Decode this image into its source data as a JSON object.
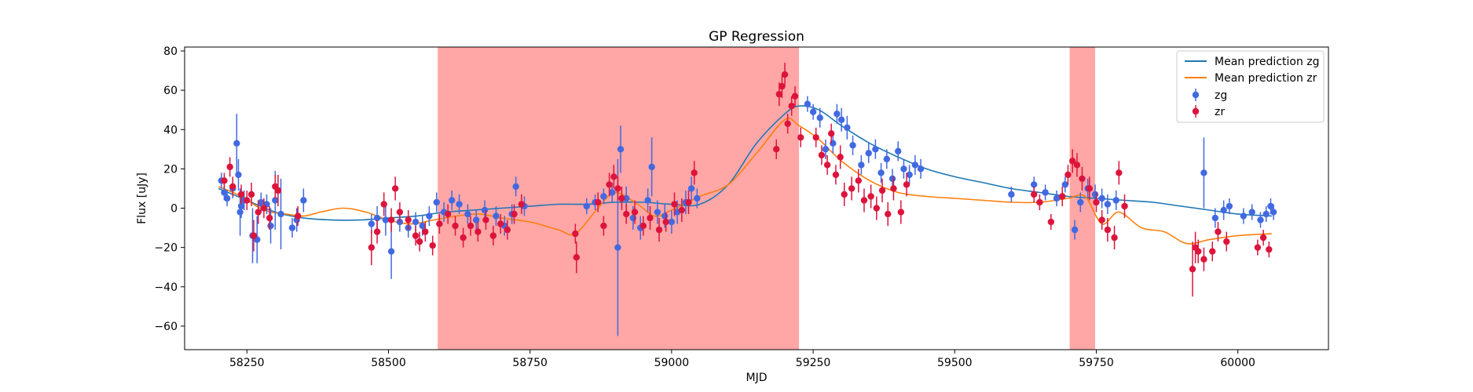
{
  "chart_data": {
    "type": "scatter",
    "title": "GP Regression",
    "xlabel": "MJD",
    "ylabel": "Flux [uJy]",
    "xlim": [
      58140,
      60160
    ],
    "ylim": [
      -72,
      82
    ],
    "x_ticks": [
      58250,
      58500,
      58750,
      59000,
      59250,
      59500,
      59750,
      60000
    ],
    "y_ticks": [
      -60,
      -40,
      -20,
      0,
      20,
      40,
      60,
      80
    ],
    "grid": false,
    "legend_position": "top-right",
    "shaded_regions": [
      {
        "x0": 58587,
        "x1": 59225,
        "color": "#ff6b6b"
      },
      {
        "x0": 59703,
        "x1": 59748,
        "color": "#ff6b6b"
      }
    ],
    "mean_predictions": [
      {
        "name": "Mean prediction zg",
        "color": "#1f77b4",
        "x": [
          58200,
          58250,
          58300,
          58350,
          58400,
          58450,
          58500,
          58550,
          58600,
          58650,
          58700,
          58750,
          58800,
          58850,
          58900,
          58950,
          59000,
          59050,
          59100,
          59150,
          59200,
          59225,
          59260,
          59300,
          59350,
          59400,
          59450,
          59500,
          59550,
          59600,
          59650,
          59700,
          59750,
          59800,
          59850,
          59900,
          59950,
          60000,
          60060
        ],
        "y": [
          10,
          4,
          -2,
          -5,
          -6,
          -6,
          -5,
          -4,
          -2,
          -1,
          0,
          1,
          2,
          2,
          3,
          3,
          2,
          2,
          12,
          33,
          48,
          52,
          50,
          42,
          33,
          26,
          20,
          16,
          13,
          10,
          8,
          6,
          5,
          4,
          3,
          1,
          -1,
          -3,
          -4
        ]
      },
      {
        "name": "Mean prediction zr",
        "color": "#ff7f0e",
        "x": [
          58200,
          58240,
          58280,
          58320,
          58350,
          58380,
          58420,
          58460,
          58500,
          58540,
          58580,
          58620,
          58660,
          58700,
          58750,
          58800,
          58830,
          58870,
          58900,
          58940,
          58970,
          59000,
          59050,
          59100,
          59150,
          59200,
          59225,
          59260,
          59300,
          59350,
          59400,
          59450,
          59500,
          59550,
          59600,
          59650,
          59700,
          59730,
          59760,
          59790,
          59830,
          59870,
          59910,
          59950,
          60000,
          60060
        ],
        "y": [
          11,
          6,
          -1,
          -3,
          -4,
          -2,
          0,
          -2,
          -6,
          -8,
          -6,
          -4,
          -3,
          -5,
          -7,
          -11,
          -13,
          0,
          8,
          2,
          -4,
          -1,
          6,
          12,
          28,
          45,
          42,
          35,
          24,
          14,
          8,
          6,
          5,
          4,
          3,
          3,
          5,
          6,
          -8,
          -2,
          -10,
          -12,
          -18,
          -16,
          -14,
          -13
        ]
      }
    ],
    "series": [
      {
        "name": "zg",
        "color": "#4169e1",
        "points": [
          [
            58205,
            14,
            4
          ],
          [
            58210,
            8,
            4
          ],
          [
            58215,
            5,
            4
          ],
          [
            58225,
            10,
            5
          ],
          [
            58232,
            33,
            15
          ],
          [
            58235,
            17,
            8
          ],
          [
            58238,
            -2,
            12
          ],
          [
            58240,
            1,
            6
          ],
          [
            58245,
            4,
            5
          ],
          [
            58260,
            -14,
            14
          ],
          [
            58268,
            -16,
            12
          ],
          [
            58275,
            3,
            5
          ],
          [
            58285,
            2,
            5
          ],
          [
            58292,
            -9,
            9
          ],
          [
            58300,
            4,
            15
          ],
          [
            58310,
            -3,
            18
          ],
          [
            58330,
            -10,
            5
          ],
          [
            58338,
            -6,
            6
          ],
          [
            58350,
            4,
            6
          ],
          [
            58470,
            -8,
            5
          ],
          [
            58480,
            -5,
            6
          ],
          [
            58495,
            -6,
            8
          ],
          [
            58505,
            -22,
            14
          ],
          [
            58520,
            -7,
            5
          ],
          [
            58535,
            -10,
            5
          ],
          [
            58548,
            -7,
            5
          ],
          [
            58560,
            -9,
            5
          ],
          [
            58572,
            -4,
            5
          ],
          [
            58585,
            3,
            5
          ],
          [
            58598,
            -2,
            5
          ],
          [
            58612,
            4,
            5
          ],
          [
            58625,
            2,
            5
          ],
          [
            58640,
            -3,
            5
          ],
          [
            58655,
            -6,
            5
          ],
          [
            58670,
            -1,
            5
          ],
          [
            58690,
            -4,
            5
          ],
          [
            58705,
            -9,
            5
          ],
          [
            58718,
            -3,
            5
          ],
          [
            58725,
            11,
            5
          ],
          [
            58740,
            1,
            5
          ],
          [
            58850,
            1,
            4
          ],
          [
            58865,
            3,
            4
          ],
          [
            58880,
            6,
            4
          ],
          [
            58895,
            8,
            5
          ],
          [
            58905,
            -20,
            45
          ],
          [
            58910,
            30,
            12
          ],
          [
            58920,
            5,
            6
          ],
          [
            58932,
            -5,
            6
          ],
          [
            58945,
            -10,
            6
          ],
          [
            58958,
            4,
            6
          ],
          [
            58965,
            21,
            15
          ],
          [
            58975,
            -2,
            6
          ],
          [
            58988,
            -4,
            6
          ],
          [
            59000,
            -7,
            6
          ],
          [
            59010,
            -2,
            6
          ],
          [
            59025,
            3,
            6
          ],
          [
            59035,
            10,
            6
          ],
          [
            59045,
            5,
            5
          ],
          [
            59240,
            53,
            4
          ],
          [
            59250,
            49,
            4
          ],
          [
            59262,
            46,
            5
          ],
          [
            59272,
            30,
            5
          ],
          [
            59285,
            33,
            5
          ],
          [
            59292,
            48,
            5
          ],
          [
            59300,
            45,
            6
          ],
          [
            59310,
            41,
            6
          ],
          [
            59320,
            32,
            5
          ],
          [
            59335,
            22,
            5
          ],
          [
            59348,
            28,
            5
          ],
          [
            59360,
            30,
            5
          ],
          [
            59370,
            18,
            5
          ],
          [
            59380,
            25,
            5
          ],
          [
            59390,
            15,
            5
          ],
          [
            59400,
            29,
            5
          ],
          [
            59410,
            20,
            5
          ],
          [
            59420,
            17,
            5
          ],
          [
            59430,
            22,
            5
          ],
          [
            59440,
            20,
            5
          ],
          [
            59600,
            7,
            4
          ],
          [
            59640,
            12,
            4
          ],
          [
            59660,
            8,
            4
          ],
          [
            59680,
            5,
            4
          ],
          [
            59695,
            12,
            4
          ],
          [
            59712,
            -11,
            5
          ],
          [
            59722,
            3,
            5
          ],
          [
            59735,
            10,
            5
          ],
          [
            59748,
            7,
            5
          ],
          [
            59760,
            5,
            5
          ],
          [
            59770,
            2,
            5
          ],
          [
            59785,
            4,
            5
          ],
          [
            59940,
            18,
            18
          ],
          [
            59960,
            -5,
            5
          ],
          [
            59975,
            -1,
            5
          ],
          [
            59985,
            1,
            4
          ],
          [
            60010,
            -4,
            4
          ],
          [
            60025,
            -2,
            4
          ],
          [
            60040,
            -6,
            4
          ],
          [
            60050,
            -3,
            4
          ],
          [
            60058,
            1,
            4
          ],
          [
            60063,
            -2,
            4
          ]
        ]
      },
      {
        "name": "zr",
        "color": "#dc143c",
        "points": [
          [
            58210,
            14,
            4
          ],
          [
            58220,
            21,
            5
          ],
          [
            58225,
            11,
            5
          ],
          [
            58240,
            7,
            5
          ],
          [
            58250,
            4,
            5
          ],
          [
            58258,
            7,
            6
          ],
          [
            58262,
            -14,
            8
          ],
          [
            58270,
            -2,
            6
          ],
          [
            58280,
            0,
            5
          ],
          [
            58290,
            -5,
            6
          ],
          [
            58300,
            11,
            6
          ],
          [
            58305,
            9,
            8
          ],
          [
            58340,
            -4,
            5
          ],
          [
            58470,
            -20,
            9
          ],
          [
            58480,
            -12,
            6
          ],
          [
            58492,
            2,
            6
          ],
          [
            58505,
            -6,
            6
          ],
          [
            58512,
            10,
            6
          ],
          [
            58520,
            -2,
            5
          ],
          [
            58535,
            -6,
            5
          ],
          [
            58548,
            -14,
            5
          ],
          [
            58555,
            -17,
            5
          ],
          [
            58565,
            -12,
            5
          ],
          [
            58578,
            -19,
            5
          ],
          [
            58590,
            -8,
            5
          ],
          [
            58605,
            -3,
            5
          ],
          [
            58618,
            -9,
            5
          ],
          [
            58632,
            -15,
            5
          ],
          [
            58645,
            -9,
            5
          ],
          [
            58658,
            -12,
            5
          ],
          [
            58672,
            -6,
            5
          ],
          [
            58685,
            -14,
            5
          ],
          [
            58698,
            -8,
            5
          ],
          [
            58710,
            -11,
            5
          ],
          [
            58722,
            -3,
            5
          ],
          [
            58735,
            2,
            5
          ],
          [
            58830,
            -13,
            5
          ],
          [
            58832,
            -25,
            8
          ],
          [
            58870,
            3,
            5
          ],
          [
            58880,
            -9,
            5
          ],
          [
            58890,
            12,
            6
          ],
          [
            58898,
            16,
            6
          ],
          [
            58905,
            10,
            6
          ],
          [
            58912,
            5,
            6
          ],
          [
            58920,
            -3,
            5
          ],
          [
            58935,
            -2,
            6
          ],
          [
            58950,
            -9,
            5
          ],
          [
            58962,
            -5,
            6
          ],
          [
            58978,
            -11,
            6
          ],
          [
            58990,
            -7,
            5
          ],
          [
            59005,
            2,
            6
          ],
          [
            59018,
            -1,
            6
          ],
          [
            59030,
            3,
            6
          ],
          [
            59040,
            18,
            6
          ],
          [
            59185,
            30,
            5
          ],
          [
            59190,
            58,
            6
          ],
          [
            59195,
            62,
            6
          ],
          [
            59200,
            68,
            6
          ],
          [
            59205,
            43,
            5
          ],
          [
            59212,
            52,
            5
          ],
          [
            59218,
            57,
            5
          ],
          [
            59228,
            36,
            5
          ],
          [
            59255,
            36,
            5
          ],
          [
            59265,
            27,
            5
          ],
          [
            59275,
            22,
            5
          ],
          [
            59282,
            38,
            5
          ],
          [
            59290,
            17,
            5
          ],
          [
            59298,
            26,
            6
          ],
          [
            59305,
            7,
            6
          ],
          [
            59318,
            10,
            6
          ],
          [
            59330,
            14,
            6
          ],
          [
            59340,
            4,
            6
          ],
          [
            59352,
            6,
            6
          ],
          [
            59362,
            0,
            6
          ],
          [
            59372,
            9,
            6
          ],
          [
            59382,
            -3,
            6
          ],
          [
            59392,
            10,
            6
          ],
          [
            59405,
            -2,
            6
          ],
          [
            59415,
            12,
            6
          ],
          [
            59640,
            7,
            4
          ],
          [
            59650,
            3,
            4
          ],
          [
            59670,
            -7,
            4
          ],
          [
            59690,
            6,
            5
          ],
          [
            59700,
            17,
            5
          ],
          [
            59708,
            24,
            6
          ],
          [
            59716,
            22,
            6
          ],
          [
            59725,
            15,
            6
          ],
          [
            59738,
            10,
            6
          ],
          [
            59750,
            3,
            5
          ],
          [
            59760,
            -6,
            5
          ],
          [
            59770,
            -11,
            6
          ],
          [
            59782,
            -15,
            6
          ],
          [
            59790,
            18,
            6
          ],
          [
            59800,
            1,
            6
          ],
          [
            59920,
            -31,
            14
          ],
          [
            59925,
            -20,
            8
          ],
          [
            59930,
            -22,
            6
          ],
          [
            59940,
            -26,
            6
          ],
          [
            59955,
            -22,
            5
          ],
          [
            59965,
            -12,
            5
          ],
          [
            59980,
            -17,
            5
          ],
          [
            60035,
            -20,
            4
          ],
          [
            60045,
            -15,
            4
          ],
          [
            60055,
            -21,
            4
          ]
        ]
      }
    ]
  }
}
